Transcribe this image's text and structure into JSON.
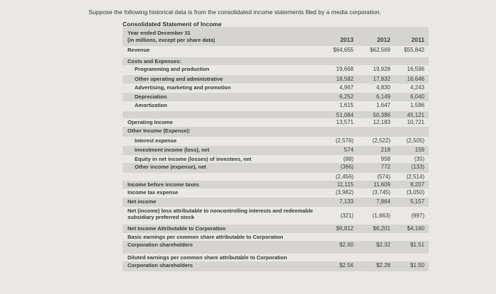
{
  "intro": "Suppose the following historical data is from the consolidated income statements filed by a media corporation.",
  "statement_title": "Consolidated Statement of Income",
  "header": {
    "line1": "Year ended December 31",
    "line2": "(in millions, except per share data)",
    "years": [
      "2013",
      "2012",
      "2011"
    ]
  },
  "rows": [
    {
      "label": "Revenue",
      "values": [
        "$64,655",
        "$62,569",
        "$55,842"
      ]
    },
    {
      "label": "Costs and Expenses:",
      "values": [
        "",
        "",
        ""
      ]
    },
    {
      "label": "Programming and production",
      "values": [
        "19,668",
        "19,928",
        "16,596"
      ]
    },
    {
      "label": "Other operating and administrative",
      "values": [
        "18,582",
        "17,832",
        "16,646"
      ]
    },
    {
      "label": "Advertising, marketing and promotion",
      "values": [
        "4,967",
        "4,830",
        "4,243"
      ]
    },
    {
      "label": "Depreciation",
      "values": [
        "6,252",
        "6,149",
        "6,040"
      ]
    },
    {
      "label": "Amortization",
      "values": [
        "1,615",
        "1,647",
        "1,596"
      ]
    },
    {
      "label": "",
      "values": [
        "51,084",
        "50,386",
        "45,121"
      ]
    },
    {
      "label": "Operating Income",
      "values": [
        "13,571",
        "12,183",
        "10,721"
      ]
    },
    {
      "label": "Other Income (Expense):",
      "values": [
        "",
        "",
        ""
      ]
    },
    {
      "label": "Interest expense",
      "values": [
        "(2,576)",
        "(2,522)",
        "(2,505)"
      ]
    },
    {
      "label": "Investment income (loss), net",
      "values": [
        "574",
        "218",
        "159"
      ]
    },
    {
      "label": "Equity in net income (losses) of investees, net",
      "values": [
        "(88)",
        "958",
        "(35)"
      ]
    },
    {
      "label": "Other income (expense), net",
      "values": [
        "(366)",
        "772",
        "(133)"
      ]
    },
    {
      "label": "",
      "values": [
        "(2,456)",
        "(574)",
        "(2,514)"
      ]
    },
    {
      "label": "Income before income taxes",
      "values": [
        "11,115",
        "11,609",
        "8,207"
      ]
    },
    {
      "label": "Income tax expense",
      "values": [
        "(3,982)",
        "(3,745)",
        "(3,050)"
      ]
    },
    {
      "label": "Net income",
      "values": [
        "7,133",
        "7,864",
        "5,157"
      ]
    },
    {
      "label": "Net (income) loss attributable to noncontrolling interests and redeemable subsidiary preferred stock",
      "values": [
        "(321)",
        "(1,663)",
        "(997)"
      ]
    },
    {
      "label": "Net Income Attributable to Corporation",
      "values": [
        "$6,812",
        "$6,201",
        "$4,160"
      ]
    },
    {
      "label": "Basic earnings per common share attributable to Corporation",
      "values": [
        "",
        "",
        ""
      ]
    },
    {
      "label": "Corporation shareholders",
      "values": [
        "$2.60",
        "$2.32",
        "$1.51"
      ]
    },
    {
      "label": "Diluted earnings per common share attributable to Corporation",
      "values": [
        "",
        "",
        ""
      ]
    },
    {
      "label": "Corporation shareholders",
      "values": [
        "$2.56",
        "$2.28",
        "$1.50"
      ]
    }
  ]
}
